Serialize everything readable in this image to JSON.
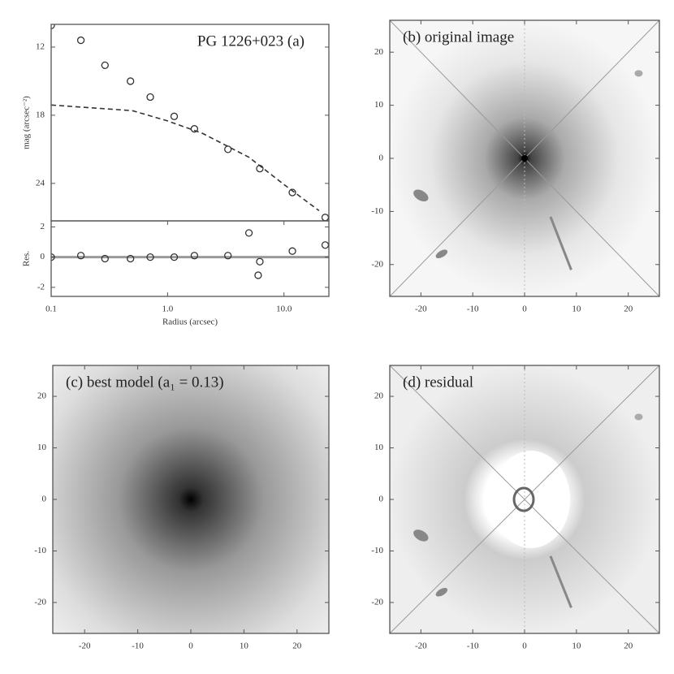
{
  "chart_data": [
    {
      "type": "scatter",
      "title": "PG 1226+023 (a)",
      "ylabel": "mag (arcsec⁻²)",
      "xscale": "log",
      "xlim": [
        0.1,
        24.3
      ],
      "ylim": [
        10,
        27.3
      ],
      "y_inverted": true,
      "yticks": [
        12,
        18,
        24
      ],
      "color": "#333",
      "series": [
        {
          "style": "points",
          "x": [
            0.1,
            0.18,
            0.29,
            0.48,
            0.71,
            1.14,
            1.7,
            3.3,
            6.2,
            11.8,
            22.6
          ],
          "values": [
            10.1,
            11.4,
            13.6,
            15.0,
            16.4,
            18.1,
            19.2,
            21.0,
            22.7,
            24.8,
            27.0
          ]
        },
        {
          "style": "dashed",
          "x": [
            0.1,
            0.5,
            1.0,
            2.0,
            5.0,
            10,
            20
          ],
          "values": [
            17.1,
            17.6,
            18.5,
            19.6,
            21.7,
            24.1,
            26.4
          ]
        }
      ]
    },
    {
      "type": "scatter",
      "ylabel": "Res.",
      "xlabel": "Radius (arcsec)",
      "xscale": "log",
      "xlim": [
        0.1,
        24.3
      ],
      "xticks": [
        0.1,
        {
          "value": 1,
          "label": "1.0"
        },
        {
          "value": 10,
          "label": "10.0"
        }
      ],
      "ylim": [
        -2.6,
        2.4
      ],
      "yticks": [
        -2,
        0,
        2
      ],
      "zero_line": true,
      "color": "#333",
      "x": [
        0.1,
        0.18,
        0.29,
        0.48,
        0.71,
        1.14,
        1.7,
        3.3,
        5.0,
        6.0,
        6.2,
        11.8,
        22.6
      ],
      "values": [
        0,
        0.1,
        -0.1,
        -0.1,
        0,
        0,
        0.1,
        0.1,
        1.6,
        -1.2,
        -0.3,
        0.4,
        0.8
      ]
    },
    {
      "type": "image",
      "title": "(b) original image",
      "image": "original",
      "xlim": [
        -26,
        26
      ],
      "ylim": [
        -26,
        26
      ],
      "xticks": [
        -20,
        -10,
        0,
        10,
        20
      ],
      "yticks": [
        -20,
        -10,
        0,
        10,
        20
      ]
    },
    {
      "type": "image",
      "title": "(c) best model (a₁ = 0.13)",
      "image": "model",
      "xlim": [
        -26,
        26
      ],
      "ylim": [
        -26,
        26
      ],
      "xticks": [
        -20,
        -10,
        0,
        10,
        20
      ],
      "yticks": [
        -20,
        -10,
        0,
        10,
        20
      ]
    },
    {
      "type": "image",
      "title": "(d) residual",
      "image": "residual",
      "xlim": [
        -26,
        26
      ],
      "ylim": [
        -26,
        26
      ],
      "xticks": [
        -20,
        -10,
        0,
        10,
        20
      ],
      "yticks": [
        -20,
        -10,
        0,
        10,
        20
      ]
    }
  ]
}
